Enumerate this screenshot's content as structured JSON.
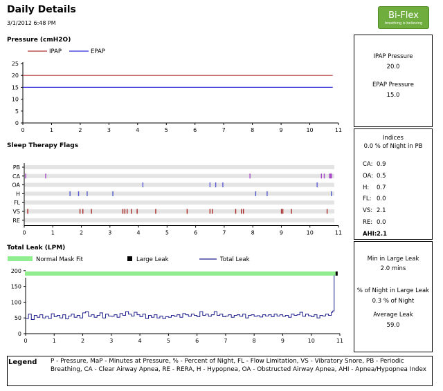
{
  "header": {
    "title": "Daily Details",
    "date": "3/1/2012 6:48 PM",
    "logo_main": "Bi-Flex",
    "logo_sub": "breathing is believing"
  },
  "pressure": {
    "title": "Pressure (cmH2O)",
    "legend": [
      "IPAP",
      "EPAP"
    ],
    "colors": {
      "ipap": "#b23232",
      "epap": "#2b2bd9"
    },
    "chart_data": {
      "type": "line",
      "x": [
        0,
        10.8
      ],
      "xlim": [
        0,
        11
      ],
      "ylim": [
        0,
        25
      ],
      "xticks": [
        "0",
        "1",
        "2",
        "3",
        "4",
        "5",
        "6",
        "7",
        "8",
        "9",
        "10",
        "11"
      ],
      "yticks": [
        "0",
        "5",
        "10",
        "15",
        "20",
        "25"
      ],
      "series": [
        {
          "name": "IPAP",
          "values": [
            20,
            20
          ]
        },
        {
          "name": "EPAP",
          "values": [
            15,
            15
          ]
        }
      ]
    }
  },
  "pressure_panel": {
    "ipap_label": "IPAP Pressure",
    "ipap_value": "20.0",
    "epap_label": "EPAP Pressure",
    "epap_value": "15.0"
  },
  "flags": {
    "title": "Sleep Therapy Flags",
    "chart_data": {
      "type": "scatter",
      "xlim": [
        0,
        11
      ],
      "xticks": [
        "0",
        "1",
        "2",
        "3",
        "4",
        "5",
        "6",
        "7",
        "8",
        "9",
        "10",
        "11"
      ],
      "rows": [
        {
          "name": "PB",
          "color": "#999999",
          "times": []
        },
        {
          "name": "CA",
          "color": "#a64ac9",
          "times": [
            0.05,
            0.75,
            7.9,
            10.4,
            10.5,
            10.68,
            10.72,
            10.76
          ]
        },
        {
          "name": "OA",
          "color": "#5a5ad6",
          "times": [
            4.15,
            6.5,
            6.7,
            6.95,
            10.25
          ]
        },
        {
          "name": "H",
          "color": "#4a58c8",
          "times": [
            1.6,
            1.9,
            2.2,
            3.1,
            8.1,
            8.5,
            10.75
          ]
        },
        {
          "name": "FL",
          "color": "#999999",
          "times": []
        },
        {
          "name": "VS",
          "color": "#a82828",
          "times": [
            0.12,
            1.95,
            2.05,
            2.35,
            3.45,
            3.52,
            3.6,
            3.75,
            3.95,
            4.6,
            5.7,
            6.5,
            6.58,
            7.4,
            7.6,
            7.67,
            9.0,
            9.05,
            9.35,
            10.6
          ]
        },
        {
          "name": "RE",
          "color": "#999999",
          "times": []
        }
      ]
    }
  },
  "indices": {
    "title": "Indices",
    "subtitle": "0.0 % of Night in PB",
    "items": [
      {
        "label": "CA:",
        "value": "0.9"
      },
      {
        "label": "OA:",
        "value": "0.5"
      },
      {
        "label": "H:",
        "value": "0.7"
      },
      {
        "label": "FL:",
        "value": "0.0"
      },
      {
        "label": "VS:",
        "value": "2.1"
      },
      {
        "label": "RE:",
        "value": "0.0"
      },
      {
        "label": "AHI:",
        "value": "2.1"
      }
    ]
  },
  "leak": {
    "title": "Total Leak (LPM)",
    "legend": {
      "normal": "Normal Mask Fit",
      "large": "Large Leak",
      "total": "Total Leak"
    },
    "colors": {
      "normal": "#90ee90",
      "large": "#000000",
      "line": "#1c1c8c"
    },
    "chart_data": {
      "type": "line",
      "xlim": [
        0,
        11
      ],
      "ylim": [
        0,
        250
      ],
      "xticks": [
        "0",
        "1",
        "2",
        "3",
        "4",
        "5",
        "6",
        "7",
        "8",
        "9",
        "10",
        "11"
      ],
      "yticks": [
        "0",
        "50",
        "100",
        "150",
        "200"
      ],
      "x": [
        0,
        0.1,
        0.2,
        0.3,
        0.4,
        0.5,
        0.6,
        0.7,
        0.8,
        0.9,
        1.0,
        1.1,
        1.2,
        1.3,
        1.4,
        1.5,
        1.6,
        1.7,
        1.8,
        1.9,
        2.0,
        2.1,
        2.2,
        2.3,
        2.4,
        2.5,
        2.6,
        2.7,
        2.8,
        2.9,
        3.0,
        3.1,
        3.2,
        3.3,
        3.4,
        3.5,
        3.6,
        3.7,
        3.8,
        3.9,
        4.0,
        4.1,
        4.2,
        4.3,
        4.4,
        4.5,
        4.6,
        4.7,
        4.8,
        4.9,
        5.0,
        5.1,
        5.2,
        5.3,
        5.4,
        5.5,
        5.6,
        5.7,
        5.8,
        5.9,
        6.0,
        6.1,
        6.2,
        6.3,
        6.4,
        6.5,
        6.6,
        6.7,
        6.8,
        6.9,
        7.0,
        7.1,
        7.2,
        7.3,
        7.4,
        7.5,
        7.6,
        7.7,
        7.8,
        7.9,
        8.0,
        8.1,
        8.2,
        8.3,
        8.4,
        8.5,
        8.6,
        8.7,
        8.8,
        8.9,
        9.0,
        9.1,
        9.2,
        9.3,
        9.4,
        9.5,
        9.6,
        9.7,
        9.8,
        9.9,
        10.0,
        10.1,
        10.2,
        10.3,
        10.4,
        10.5,
        10.6,
        10.7,
        10.75,
        10.8
      ],
      "values": [
        48,
        62,
        45,
        58,
        52,
        60,
        50,
        55,
        48,
        63,
        54,
        58,
        50,
        60,
        47,
        56,
        62,
        52,
        58,
        50,
        66,
        70,
        55,
        60,
        52,
        58,
        66,
        50,
        62,
        56,
        55,
        60,
        52,
        64,
        58,
        70,
        62,
        56,
        68,
        60,
        54,
        62,
        48,
        58,
        52,
        60,
        50,
        56,
        48,
        54,
        52,
        58,
        55,
        60,
        52,
        64,
        60,
        55,
        62,
        58,
        54,
        70,
        58,
        62,
        55,
        60,
        70,
        58,
        62,
        54,
        56,
        60,
        52,
        58,
        60,
        55,
        62,
        50,
        58,
        60,
        55,
        57,
        53,
        60,
        56,
        60,
        54,
        62,
        56,
        60,
        55,
        58,
        52,
        62,
        58,
        60,
        68,
        55,
        62,
        57,
        54,
        60,
        50,
        58,
        56,
        62,
        58,
        68,
        72,
        185
      ]
    }
  },
  "leak_panel": {
    "large_label": "Min in Large Leak",
    "large_value": "2.0 mins",
    "pct_label": "% of Night in Large Leak",
    "pct_value": "0.3 % of Night",
    "avg_label": "Average Leak",
    "avg_value": "59.0"
  },
  "legend": {
    "label": "Legend",
    "text": "P - Pressure, MaP - Minutes at Pressure, % - Percent of Night, FL - Flow Limitation, VS - Vibratory Snore, PB - Periodic Breathing, CA - Clear Airway Apnea, RE - RERA, H - Hypopnea, OA - Obstructed Airway Apnea, AHI - Apnea/Hypopnea Index"
  }
}
